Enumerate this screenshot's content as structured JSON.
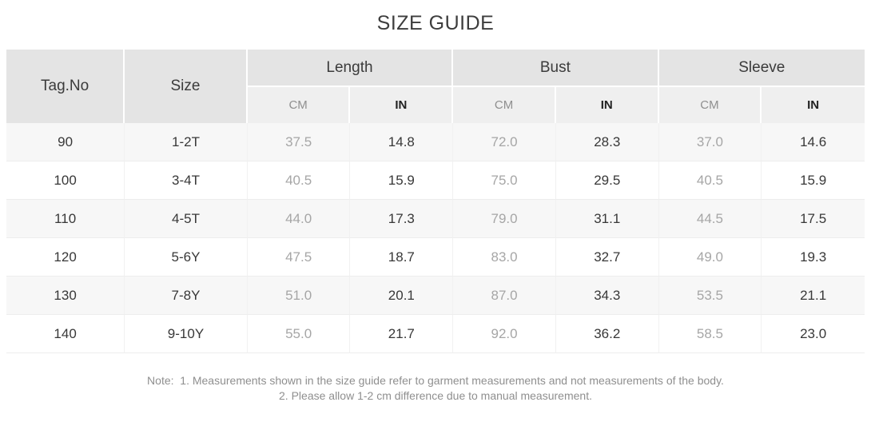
{
  "title": "SIZE GUIDE",
  "table": {
    "headers": {
      "tag_no": "Tag.No",
      "size": "Size",
      "groups": [
        {
          "label": "Length",
          "units": [
            "CM",
            "IN"
          ]
        },
        {
          "label": "Bust",
          "units": [
            "CM",
            "IN"
          ]
        },
        {
          "label": "Sleeve",
          "units": [
            "CM",
            "IN"
          ]
        }
      ]
    },
    "rows": [
      {
        "tag": "90",
        "size": "1-2T",
        "length_cm": "37.5",
        "length_in": "14.8",
        "bust_cm": "72.0",
        "bust_in": "28.3",
        "sleeve_cm": "37.0",
        "sleeve_in": "14.6"
      },
      {
        "tag": "100",
        "size": "3-4T",
        "length_cm": "40.5",
        "length_in": "15.9",
        "bust_cm": "75.0",
        "bust_in": "29.5",
        "sleeve_cm": "40.5",
        "sleeve_in": "15.9"
      },
      {
        "tag": "110",
        "size": "4-5T",
        "length_cm": "44.0",
        "length_in": "17.3",
        "bust_cm": "79.0",
        "bust_in": "31.1",
        "sleeve_cm": "44.5",
        "sleeve_in": "17.5"
      },
      {
        "tag": "120",
        "size": "5-6Y",
        "length_cm": "47.5",
        "length_in": "18.7",
        "bust_cm": "83.0",
        "bust_in": "32.7",
        "sleeve_cm": "49.0",
        "sleeve_in": "19.3"
      },
      {
        "tag": "130",
        "size": "7-8Y",
        "length_cm": "51.0",
        "length_in": "20.1",
        "bust_cm": "87.0",
        "bust_in": "34.3",
        "sleeve_cm": "53.5",
        "sleeve_in": "21.1"
      },
      {
        "tag": "140",
        "size": "9-10Y",
        "length_cm": "55.0",
        "length_in": "21.7",
        "bust_cm": "92.0",
        "bust_in": "36.2",
        "sleeve_cm": "58.5",
        "sleeve_in": "23.0"
      }
    ]
  },
  "note": {
    "line1": "Note:  1. Measurements shown in the size guide refer to garment measurements and not measurements of the body.",
    "line2": "2. Please allow 1-2 cm difference due to manual measurement."
  },
  "colors": {
    "header_bg": "#e4e4e4",
    "subheader_bg": "#efefef",
    "row_alt_bg": "#f7f7f7",
    "dark_text": "#383838",
    "muted_text": "#a6a6a6",
    "note_text": "#8f8f8f"
  }
}
